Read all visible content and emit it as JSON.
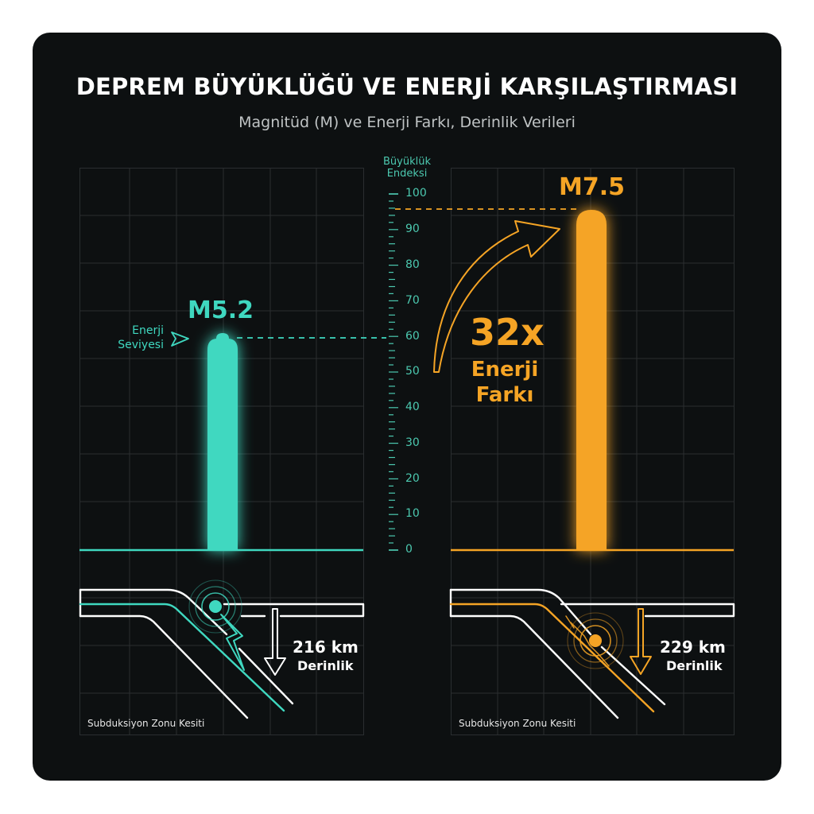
{
  "header": {
    "title": "DEPREM BÜYÜKLÜĞÜ VE ENERJİ KARŞILAŞTIRMASI",
    "subtitle": "Magnitüd (M) ve Enerji Farkı, Derinlik Verileri"
  },
  "axis": {
    "title_line1": "Büyüklük",
    "title_line2": "Endeksi",
    "ticks": [
      "100",
      "90",
      "80",
      "70",
      "60",
      "50",
      "40",
      "30",
      "20",
      "10",
      "0"
    ]
  },
  "left": {
    "magnitude_label": "M5.2",
    "energy_label_line1": "Enerji",
    "energy_label_line2": "Seviyesi",
    "depth_value": "216 km",
    "depth_label": "Derinlik",
    "caption": "Subduksiyon Zonu Kesiti",
    "color": "#3fd8c0"
  },
  "right": {
    "magnitude_label": "M7.5",
    "depth_value": "229 km",
    "depth_label": "Derinlik",
    "caption": "Subduksiyon Zonu Kesiti",
    "color": "#f5a425"
  },
  "comparison": {
    "factor": "32x",
    "line1": "Enerji",
    "line2": "Farkı"
  },
  "chart_data": {
    "type": "bar",
    "title": "DEPREM BÜYÜKLÜĞÜ VE ENERJİ KARŞILAŞTIRMASI",
    "subtitle": "Magnitüd (M) ve Enerji Farkı, Derinlik Verileri",
    "categories": [
      "M5.2",
      "M7.5"
    ],
    "values": [
      60,
      96
    ],
    "magnitudes": [
      5.2,
      7.5
    ],
    "depths_km": [
      216,
      229
    ],
    "ylabel": "Büyüklük Endeksi",
    "ylim": [
      0,
      100
    ],
    "yticks": [
      0,
      10,
      20,
      30,
      40,
      50,
      60,
      70,
      80,
      90,
      100
    ],
    "annotations": [
      "Enerji Seviyesi",
      "32x Enerji Farkı",
      "216 km Derinlik",
      "229 km Derinlik",
      "Subduksiyon Zonu Kesiti"
    ],
    "colors": [
      "#3fd8c0",
      "#f5a425"
    ],
    "grid": true
  }
}
